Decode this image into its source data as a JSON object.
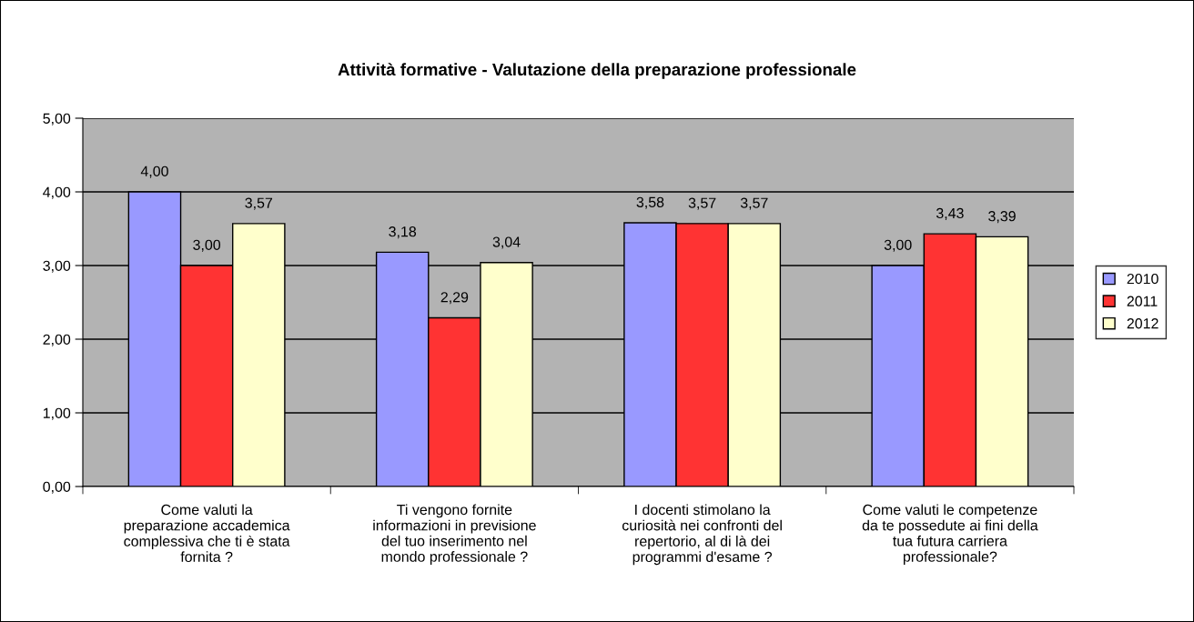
{
  "chart_data": {
    "type": "bar",
    "title": "Attività formative - Valutazione della preparazione professionale",
    "categories": [
      "Come valuti la\npreparazione accademica\ncomplessiva che ti è stata\nfornita ?",
      "Ti vengono fornite\ninformazioni in previsione\ndel tuo inserimento nel\nmondo professionale ?",
      "I docenti stimolano la\ncuriosità nei confronti del\nrepertorio, al di là dei\nprogrammi d'esame ?",
      "Come valuti le competenze\nda te possedute ai fini della\ntua futura carriera\nprofessionale?"
    ],
    "series": [
      {
        "name": "2010",
        "color": "#9999ff",
        "values": [
          4.0,
          3.18,
          3.58,
          3.0
        ],
        "value_labels": [
          "4,00",
          "3,18",
          "3,58",
          "3,00"
        ]
      },
      {
        "name": "2011",
        "color": "#ff3333",
        "values": [
          3.0,
          2.29,
          3.57,
          3.43
        ],
        "value_labels": [
          "3,00",
          "2,29",
          "3,57",
          "3,43"
        ]
      },
      {
        "name": "2012",
        "color": "#ffffcc",
        "values": [
          3.57,
          3.04,
          3.57,
          3.39
        ],
        "value_labels": [
          "3,57",
          "3,04",
          "3,57",
          "3,39"
        ]
      }
    ],
    "ylim": [
      0,
      5
    ],
    "yticks": [
      {
        "value": 0,
        "label": "0,00"
      },
      {
        "value": 1,
        "label": "1,00"
      },
      {
        "value": 2,
        "label": "2,00"
      },
      {
        "value": 3,
        "label": "3,00"
      },
      {
        "value": 4,
        "label": "4,00"
      },
      {
        "value": 5,
        "label": "5,00"
      }
    ],
    "grid": "y",
    "legend": "right"
  }
}
